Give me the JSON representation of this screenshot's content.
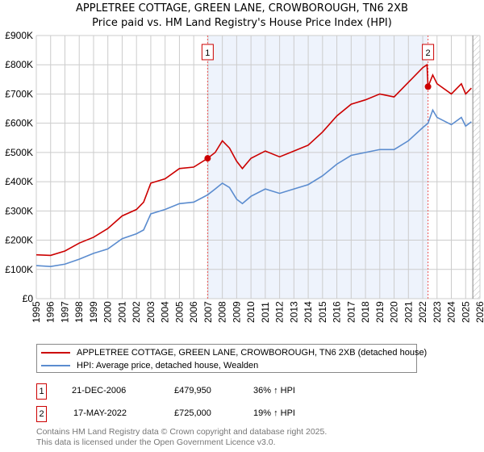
{
  "chart_data": {
    "type": "line",
    "title": "APPLETREE COTTAGE, GREEN LANE, CROWBOROUGH, TN6 2XB",
    "subtitle": "Price paid vs. HM Land Registry's House Price Index (HPI)",
    "xlim": [
      1995,
      2026
    ],
    "ylim": [
      0,
      900000
    ],
    "x_ticks": [
      "1995",
      "1996",
      "1997",
      "1998",
      "1999",
      "2000",
      "2001",
      "2002",
      "2003",
      "2004",
      "2005",
      "2006",
      "2007",
      "2008",
      "2009",
      "2010",
      "2011",
      "2012",
      "2013",
      "2014",
      "2015",
      "2016",
      "2017",
      "2018",
      "2019",
      "2020",
      "2021",
      "2022",
      "2023",
      "2024",
      "2025",
      "2026"
    ],
    "y_ticks": [
      "£0",
      "£100K",
      "£200K",
      "£300K",
      "£400K",
      "£500K",
      "£600K",
      "£700K",
      "£800K",
      "£900K"
    ],
    "series": [
      {
        "name": "APPLETREE COTTAGE, GREEN LANE, CROWBOROUGH, TN6 2XB (detached house)",
        "color": "#cc0000",
        "x": [
          1995,
          1996,
          1997,
          1998,
          1999,
          2000,
          2001,
          2002,
          2002.5,
          2003,
          2004,
          2005,
          2006,
          2006.97,
          2007.5,
          2008,
          2008.5,
          2009,
          2009.4,
          2010,
          2011,
          2012,
          2013,
          2014,
          2015,
          2016,
          2017,
          2018,
          2019,
          2020,
          2021,
          2022,
          2022.3,
          2022.37,
          2022.7,
          2023,
          2024,
          2024.7,
          2025,
          2025.4
        ],
        "y": [
          150000,
          148000,
          163000,
          190000,
          210000,
          240000,
          283000,
          305000,
          330000,
          395000,
          410000,
          445000,
          450000,
          479950,
          500000,
          540000,
          515000,
          470000,
          445000,
          480000,
          505000,
          485000,
          505000,
          525000,
          570000,
          625000,
          665000,
          680000,
          700000,
          690000,
          740000,
          790000,
          800000,
          725000,
          765000,
          735000,
          700000,
          735000,
          700000,
          720000
        ]
      },
      {
        "name": "HPI: Average price, detached house, Wealden",
        "color": "#5b8ccf",
        "x": [
          1995,
          1996,
          1997,
          1998,
          1999,
          2000,
          2001,
          2002,
          2002.5,
          2003,
          2004,
          2005,
          2006,
          2006.97,
          2007.5,
          2008,
          2008.5,
          2009,
          2009.4,
          2010,
          2011,
          2012,
          2013,
          2014,
          2015,
          2016,
          2017,
          2018,
          2019,
          2020,
          2021,
          2022,
          2022.37,
          2022.7,
          2023,
          2024,
          2024.7,
          2025,
          2025.4
        ],
        "y": [
          113000,
          110000,
          118000,
          135000,
          155000,
          170000,
          205000,
          222000,
          235000,
          290000,
          305000,
          325000,
          330000,
          355000,
          375000,
          395000,
          380000,
          340000,
          325000,
          350000,
          375000,
          360000,
          375000,
          390000,
          420000,
          460000,
          490000,
          500000,
          510000,
          510000,
          540000,
          585000,
          600000,
          645000,
          620000,
          595000,
          620000,
          590000,
          605000
        ]
      }
    ],
    "sales": [
      {
        "label": "1",
        "date": "21-DEC-2006",
        "x": 2006.97,
        "price": "£479,950",
        "price_value": 479950,
        "hpi": "36% ↑ HPI"
      },
      {
        "label": "2",
        "date": "17-MAY-2022",
        "x": 2022.37,
        "price": "£725,000",
        "price_value": 725000,
        "hpi": "19% ↑ HPI"
      }
    ],
    "forecast_start": 2025.5,
    "grid": true,
    "legend_placement": "below"
  },
  "footer": {
    "line1": "Contains HM Land Registry data © Crown copyright and database right 2025.",
    "line2": "This data is licensed under the Open Government Licence v3.0."
  }
}
